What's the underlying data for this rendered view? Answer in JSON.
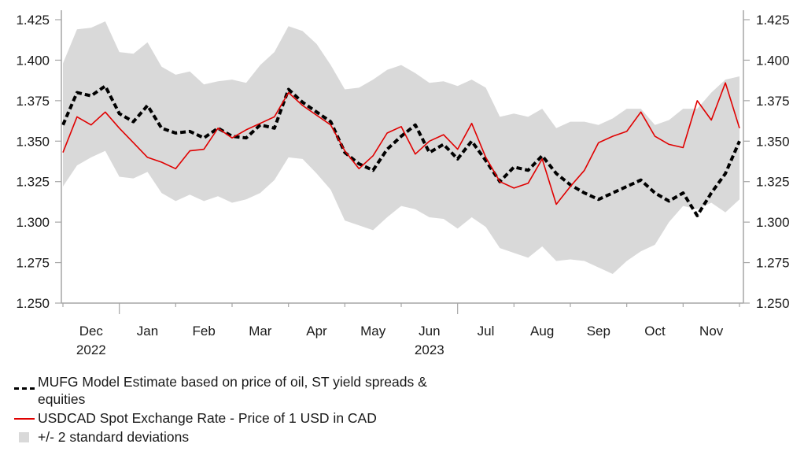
{
  "chart_data": {
    "type": "line",
    "title": "",
    "xlabel": "",
    "ylabel": "",
    "ylim": [
      1.25,
      1.425
    ],
    "y_ticks": [
      "1.425",
      "1.400",
      "1.375",
      "1.350",
      "1.325",
      "1.300",
      "1.275",
      "1.250"
    ],
    "y_tick_values": [
      1.425,
      1.4,
      1.375,
      1.35,
      1.325,
      1.3,
      1.275,
      1.25
    ],
    "y_axis_both_sides": true,
    "grid": false,
    "x_month_labels": [
      "Dec",
      "Jan",
      "Feb",
      "Mar",
      "Apr",
      "May",
      "Jun",
      "Jul",
      "Aug",
      "Sep",
      "Oct",
      "Nov"
    ],
    "x_year_labels": [
      {
        "month_index": 0,
        "label": "2022"
      },
      {
        "month_index": 6,
        "label": "2023"
      }
    ],
    "x_range_months": [
      0,
      12
    ],
    "x": [
      0.0,
      0.25,
      0.5,
      0.75,
      1.0,
      1.25,
      1.5,
      1.75,
      2.0,
      2.25,
      2.5,
      2.75,
      3.0,
      3.25,
      3.5,
      3.75,
      4.0,
      4.25,
      4.5,
      4.75,
      5.0,
      5.25,
      5.5,
      5.75,
      6.0,
      6.25,
      6.5,
      6.75,
      7.0,
      7.25,
      7.5,
      7.75,
      8.0,
      8.25,
      8.5,
      8.75,
      9.0,
      9.25,
      9.5,
      9.75,
      10.0,
      10.25,
      10.5,
      10.75,
      11.0,
      11.25,
      11.5,
      11.75,
      12.0
    ],
    "series": [
      {
        "name": "MUFG Model Estimate based on price of oil, ST yield spreads & equities",
        "style": "dashed",
        "color": "#000000",
        "values": [
          1.36,
          1.38,
          1.378,
          1.384,
          1.367,
          1.362,
          1.372,
          1.358,
          1.355,
          1.356,
          1.352,
          1.358,
          1.353,
          1.352,
          1.36,
          1.358,
          1.382,
          1.374,
          1.368,
          1.362,
          1.343,
          1.336,
          1.332,
          1.345,
          1.353,
          1.36,
          1.343,
          1.348,
          1.339,
          1.35,
          1.338,
          1.325,
          1.334,
          1.332,
          1.341,
          1.33,
          1.323,
          1.318,
          1.314,
          1.318,
          1.322,
          1.326,
          1.318,
          1.313,
          1.318,
          1.304,
          1.318,
          1.33,
          1.35
        ]
      },
      {
        "name": "USDCAD Spot Exchange Rate - Price of 1 USD in CAD",
        "style": "solid",
        "color": "#e00000",
        "values": [
          1.343,
          1.365,
          1.36,
          1.368,
          1.358,
          1.349,
          1.34,
          1.337,
          1.333,
          1.344,
          1.345,
          1.358,
          1.352,
          1.357,
          1.361,
          1.365,
          1.38,
          1.372,
          1.366,
          1.36,
          1.344,
          1.333,
          1.341,
          1.355,
          1.359,
          1.342,
          1.35,
          1.354,
          1.345,
          1.361,
          1.34,
          1.325,
          1.321,
          1.324,
          1.339,
          1.311,
          1.322,
          1.332,
          1.349,
          1.353,
          1.356,
          1.368,
          1.353,
          1.348,
          1.346,
          1.375,
          1.363,
          1.386,
          1.358
        ]
      }
    ],
    "band": {
      "name": "+/- 2 standard deviations",
      "color": "#d9d9d9",
      "upper": [
        1.398,
        1.419,
        1.42,
        1.424,
        1.405,
        1.404,
        1.411,
        1.396,
        1.391,
        1.393,
        1.385,
        1.387,
        1.388,
        1.386,
        1.397,
        1.405,
        1.421,
        1.418,
        1.41,
        1.397,
        1.382,
        1.383,
        1.388,
        1.394,
        1.397,
        1.392,
        1.386,
        1.387,
        1.384,
        1.388,
        1.383,
        1.365,
        1.367,
        1.365,
        1.37,
        1.358,
        1.362,
        1.362,
        1.36,
        1.364,
        1.37,
        1.37,
        1.36,
        1.363,
        1.37,
        1.37,
        1.38,
        1.388,
        1.39
      ],
      "lower": [
        1.322,
        1.335,
        1.34,
        1.344,
        1.328,
        1.327,
        1.331,
        1.318,
        1.313,
        1.317,
        1.313,
        1.316,
        1.312,
        1.314,
        1.318,
        1.326,
        1.34,
        1.339,
        1.33,
        1.32,
        1.301,
        1.298,
        1.295,
        1.303,
        1.31,
        1.308,
        1.303,
        1.302,
        1.296,
        1.303,
        1.297,
        1.284,
        1.281,
        1.278,
        1.285,
        1.276,
        1.277,
        1.276,
        1.272,
        1.268,
        1.276,
        1.282,
        1.286,
        1.3,
        1.31,
        1.308,
        1.312,
        1.306,
        1.314
      ]
    },
    "legend_position": "bottom-left"
  },
  "legend": {
    "items": [
      {
        "label": "MUFG Model Estimate based on price of oil, ST yield spreads & equities"
      },
      {
        "label": "USDCAD Spot Exchange Rate - Price of 1 USD in CAD"
      },
      {
        "label": "+/- 2 standard deviations"
      }
    ]
  }
}
